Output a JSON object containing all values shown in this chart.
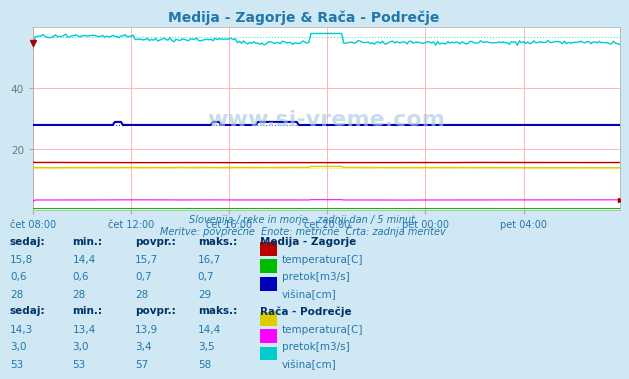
{
  "title": "Medija - Zagorje & Rača - Podrečje",
  "subtitle1": "Slovenija / reke in morje.",
  "subtitle2": "zadnji dan / 5 minut.",
  "subtitle3": "Meritve: povprečne  Enote: metrične  Črta: zadnja meritev",
  "bg_color": "#d0e8f4",
  "plot_bg_color": "#ffffff",
  "grid_color": "#ffaaaa",
  "n_points": 288,
  "x_tick_labels": [
    "čet 08:00",
    "čet 12:00",
    "čet 16:00",
    "čet 20:00",
    "pet 00:00",
    "pet 04:00"
  ],
  "x_tick_positions": [
    0,
    48,
    96,
    144,
    192,
    240
  ],
  "ylim": [
    0,
    60
  ],
  "yticks": [
    20,
    40
  ],
  "station1": {
    "name": "Medija - Zagorje",
    "temp_color": "#bb0000",
    "pretok_color": "#00bb00",
    "visina_color": "#0000bb",
    "temp_sedaj": 15.8,
    "temp_min": 14.4,
    "temp_povpr": 15.7,
    "temp_maks": 16.7,
    "pretok_sedaj": 0.6,
    "pretok_min": 0.6,
    "pretok_povpr": 0.7,
    "pretok_maks": 0.7,
    "visina_sedaj": 28,
    "visina_min": 28,
    "visina_povpr": 28,
    "visina_maks": 29
  },
  "station2": {
    "name": "Rača - Podrečje",
    "temp_color": "#ddcc00",
    "pretok_color": "#ff00ff",
    "visina_color": "#00cccc",
    "temp_sedaj": 14.3,
    "temp_min": 13.4,
    "temp_povpr": 13.9,
    "temp_maks": 14.4,
    "pretok_sedaj": 3.0,
    "pretok_min": 3.0,
    "pretok_povpr": 3.4,
    "pretok_maks": 3.5,
    "visina_sedaj": 53,
    "visina_min": 53,
    "visina_povpr": 57,
    "visina_maks": 58
  },
  "watermark": "www.si-vreme.com",
  "text_color": "#2277aa",
  "bold_color": "#003366"
}
